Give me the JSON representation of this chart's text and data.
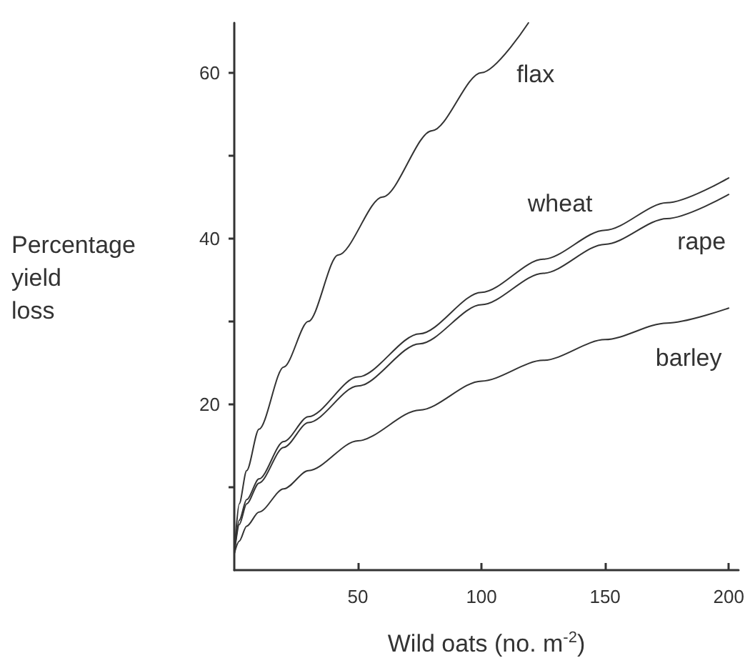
{
  "chart_data": {
    "type": "line",
    "xlabel": "Wild oats (no. m$^{-2}$)",
    "ylabel": "Percentage yield loss",
    "xlim": [
      0,
      204
    ],
    "ylim": [
      0,
      66
    ],
    "xticks": [
      50,
      100,
      150,
      200
    ],
    "yticks": [
      {
        "value": 10,
        "label": null
      },
      20,
      {
        "value": 30,
        "label": null
      },
      40,
      {
        "value": 50,
        "label": null
      },
      60
    ],
    "grid": false,
    "legend": false,
    "marker": "none",
    "line_style": "solid",
    "series": [
      {
        "name": "flax",
        "color": "#333333",
        "x": [
          0,
          2,
          5,
          10,
          20,
          30,
          42,
          60,
          80,
          100,
          119
        ],
        "values": [
          2,
          8,
          12,
          17,
          24.5,
          30,
          38,
          45,
          53,
          60,
          66
        ]
      },
      {
        "name": "wheat",
        "color": "#333333",
        "x": [
          0,
          2,
          5,
          10,
          20,
          30,
          50,
          75,
          100,
          125,
          150,
          175,
          200
        ],
        "values": [
          2,
          6,
          8.5,
          11,
          15.5,
          18.5,
          23.3,
          28.5,
          33.5,
          37.5,
          41,
          44.3,
          47.3
        ]
      },
      {
        "name": "rape",
        "color": "#333333",
        "x": [
          0,
          2,
          5,
          10,
          20,
          30,
          50,
          75,
          100,
          125,
          150,
          175,
          200
        ],
        "values": [
          2,
          5.5,
          8,
          10.5,
          14.8,
          17.8,
          22.2,
          27.3,
          32,
          35.8,
          39.3,
          42.4,
          45.3
        ]
      },
      {
        "name": "barley",
        "color": "#333333",
        "x": [
          0,
          2,
          5,
          10,
          20,
          30,
          50,
          75,
          100,
          125,
          150,
          175,
          200
        ],
        "values": [
          2,
          3.5,
          5.3,
          7,
          9.8,
          12,
          15.6,
          19.3,
          22.8,
          25.3,
          27.8,
          29.8,
          31.6
        ]
      }
    ]
  }
}
